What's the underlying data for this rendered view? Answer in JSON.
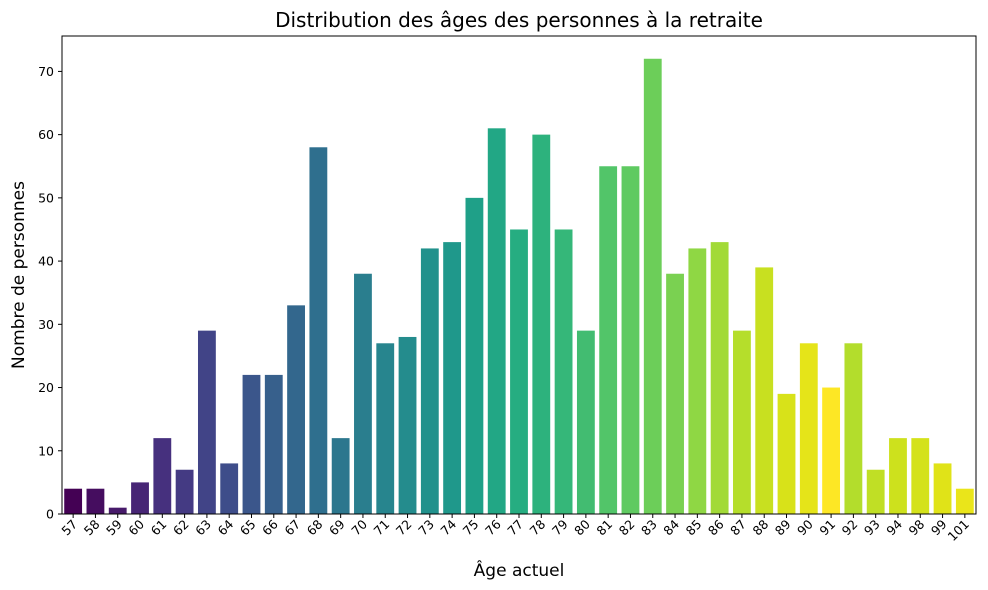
{
  "chart_data": {
    "type": "bar",
    "title": "Distribution des âges des personnes à la retraite",
    "xlabel": "Âge actuel",
    "ylabel": "Nombre de personnes",
    "categories": [
      "57",
      "58",
      "59",
      "60",
      "61",
      "62",
      "63",
      "64",
      "65",
      "66",
      "67",
      "68",
      "69",
      "70",
      "71",
      "72",
      "73",
      "74",
      "75",
      "76",
      "77",
      "78",
      "79",
      "80",
      "81",
      "82",
      "83",
      "84",
      "85",
      "86",
      "87",
      "88",
      "89",
      "90",
      "91",
      "92",
      "93",
      "94",
      "98",
      "99",
      "101"
    ],
    "values": [
      4,
      4,
      1,
      5,
      12,
      7,
      29,
      8,
      22,
      22,
      33,
      58,
      12,
      38,
      27,
      28,
      42,
      43,
      50,
      61,
      45,
      60,
      45,
      29,
      55,
      55,
      72,
      38,
      42,
      43,
      29,
      39,
      19,
      27,
      20,
      27,
      7,
      12,
      12,
      8,
      4
    ],
    "yticks": [
      0,
      10,
      20,
      30,
      40,
      50,
      60,
      70
    ],
    "ylim": [
      0,
      75.6
    ],
    "grid": false,
    "legend": "none",
    "colormap": "viridis",
    "bar_colors": [
      "#440154",
      "#450d5f",
      "#471a6a",
      "#472575",
      "#46307e",
      "#443a83",
      "#414487",
      "#3e4d8a",
      "#3b568b",
      "#37608c",
      "#33678d",
      "#2f6f8e",
      "#2c778e",
      "#2a7e8e",
      "#27858e",
      "#248c8d",
      "#21918c",
      "#1f988b",
      "#1fa088",
      "#22a785",
      "#26ad81",
      "#2db27d",
      "#35b779",
      "#42bc71",
      "#52c569",
      "#5fca61",
      "#6cce59",
      "#7ad151",
      "#8fd744",
      "#a2da37",
      "#b5de2b",
      "#c8e020",
      "#d8e219",
      "#e5e419",
      "#fde725",
      "#b3dd2c",
      "#c0df25",
      "#cde11d",
      "#d4e21a",
      "#e0e318",
      "#eae51a"
    ]
  }
}
